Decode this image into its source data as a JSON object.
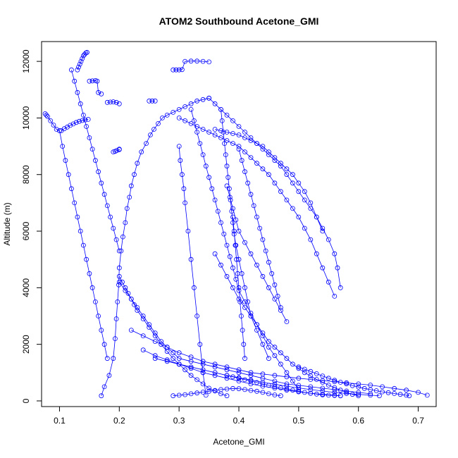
{
  "chart_data": {
    "type": "scatter",
    "title": "ATOM2 Southbound Acetone_GMI",
    "xlabel": "Acetone_GMI",
    "ylabel": "Altitude (m)",
    "xlim": [
      0.07,
      0.73
    ],
    "ylim": [
      -200,
      12700
    ],
    "x_ticks": [
      0.1,
      0.2,
      0.3,
      0.4,
      0.5,
      0.6,
      0.7
    ],
    "x_tick_labels": [
      "0.1",
      "0.2",
      "0.3",
      "0.4",
      "0.5",
      "0.6",
      "0.7"
    ],
    "y_ticks": [
      0,
      2000,
      4000,
      6000,
      8000,
      10000,
      12000
    ],
    "y_tick_labels": [
      "0",
      "2000",
      "4000",
      "6000",
      "8000",
      "10000",
      "12000"
    ],
    "grid": false,
    "legend": "none",
    "marker": "open-circle",
    "series_color": "#0000ff",
    "series": [
      {
        "x": [
          0.17,
          0.175,
          0.183,
          0.19,
          0.193,
          0.195,
          0.197,
          0.199,
          0.2,
          0.203,
          0.206,
          0.21,
          0.213,
          0.217,
          0.22,
          0.225,
          0.23,
          0.237,
          0.245,
          0.252,
          0.258,
          0.265,
          0.272,
          0.28,
          0.29,
          0.3,
          0.31,
          0.32,
          0.33,
          0.34,
          0.35
        ],
        "y": [
          180,
          500,
          900,
          1500,
          2200,
          2900,
          3500,
          4100,
          4700,
          5300,
          5800,
          6300,
          6800,
          7200,
          7600,
          8000,
          8400,
          8800,
          9100,
          9400,
          9600,
          9800,
          10000,
          10100,
          10200,
          10300,
          10400,
          10500,
          10600,
          10650,
          10700
        ]
      },
      {
        "x": [
          0.13,
          0.132,
          0.134,
          0.136,
          0.138,
          0.14,
          0.142,
          0.144,
          0.146
        ],
        "y": [
          11700,
          11800,
          11900,
          12000,
          12100,
          12200,
          12250,
          12300,
          12320
        ]
      },
      {
        "x": [
          0.12,
          0.125,
          0.13,
          0.135,
          0.14,
          0.145,
          0.15,
          0.155,
          0.16,
          0.165,
          0.17,
          0.175,
          0.18,
          0.185,
          0.19,
          0.195,
          0.2
        ],
        "y": [
          11700,
          11300,
          10900,
          10500,
          10100,
          9700,
          9300,
          8900,
          8500,
          8100,
          7700,
          7300,
          6900,
          6500,
          6100,
          5700,
          5300
        ]
      },
      {
        "x": [
          0.1,
          0.105,
          0.11,
          0.115,
          0.12,
          0.125,
          0.13,
          0.135,
          0.14,
          0.145,
          0.15,
          0.155,
          0.16,
          0.165,
          0.17,
          0.175,
          0.18
        ],
        "y": [
          9550,
          9000,
          8500,
          8000,
          7500,
          7000,
          6500,
          6000,
          5500,
          5000,
          4500,
          4000,
          3500,
          3000,
          2500,
          2000,
          1500
        ]
      },
      {
        "x": [
          0.103,
          0.108,
          0.113,
          0.118,
          0.123,
          0.128,
          0.133,
          0.138,
          0.143,
          0.148
        ],
        "y": [
          9550,
          9620,
          9680,
          9740,
          9790,
          9840,
          9880,
          9910,
          9930,
          9950
        ]
      },
      {
        "x": [
          0.076,
          0.078,
          0.08,
          0.085,
          0.09,
          0.095,
          0.1
        ],
        "y": [
          10150,
          10100,
          10050,
          9900,
          9750,
          9600,
          9550
        ]
      },
      {
        "x": [
          0.15,
          0.155,
          0.16,
          0.163,
          0.165,
          0.17
        ],
        "y": [
          11300,
          11310,
          11320,
          11300,
          10900,
          10850
        ]
      },
      {
        "x": [
          0.18,
          0.185,
          0.19,
          0.195,
          0.2
        ],
        "y": [
          10550,
          10560,
          10570,
          10550,
          10500
        ]
      },
      {
        "x": [
          0.19,
          0.193,
          0.196,
          0.2,
          0.2
        ],
        "y": [
          8800,
          8820,
          8850,
          8880,
          8900
        ]
      },
      {
        "x": [
          0.25,
          0.255,
          0.26
        ],
        "y": [
          10600,
          10600,
          10600
        ]
      },
      {
        "x": [
          0.29,
          0.295,
          0.3,
          0.305,
          0.31,
          0.32,
          0.33,
          0.34,
          0.35
        ],
        "y": [
          11700,
          11700,
          11700,
          11710,
          12000,
          12010,
          12010,
          12000,
          11980
        ]
      },
      {
        "x": [
          0.3,
          0.31,
          0.32,
          0.33,
          0.34,
          0.35,
          0.36,
          0.37,
          0.38,
          0.39,
          0.4,
          0.41,
          0.42,
          0.43,
          0.44,
          0.45,
          0.46,
          0.47,
          0.48,
          0.49,
          0.5,
          0.51,
          0.52,
          0.53,
          0.54,
          0.55,
          0.56
        ],
        "y": [
          10000,
          9900,
          9800,
          9700,
          9600,
          9500,
          9400,
          9300,
          9200,
          9100,
          9000,
          8800,
          8600,
          8400,
          8200,
          8000,
          7700,
          7400,
          7100,
          6800,
          6500,
          6100,
          5700,
          5200,
          4700,
          4200,
          3700
        ]
      },
      {
        "x": [
          0.35,
          0.36,
          0.37,
          0.38,
          0.39,
          0.4,
          0.41,
          0.42,
          0.43,
          0.44,
          0.45,
          0.46,
          0.47,
          0.48,
          0.49,
          0.5,
          0.51,
          0.52,
          0.53,
          0.54,
          0.55,
          0.56,
          0.565,
          0.57
        ],
        "y": [
          10700,
          10500,
          10300,
          10100,
          9900,
          9700,
          9500,
          9300,
          9100,
          8900,
          8700,
          8500,
          8300,
          8000,
          7700,
          7400,
          7100,
          6800,
          6500,
          6100,
          5700,
          5200,
          4700,
          4000
        ]
      },
      {
        "x": [
          0.36,
          0.37,
          0.38,
          0.39,
          0.4,
          0.41,
          0.42,
          0.43,
          0.44,
          0.45,
          0.46,
          0.47,
          0.48,
          0.49,
          0.5,
          0.51,
          0.52,
          0.53,
          0.54
        ],
        "y": [
          9600,
          9550,
          9500,
          9450,
          9400,
          9300,
          9200,
          9100,
          9000,
          8800,
          8600,
          8400,
          8200,
          8000,
          7700,
          7400,
          7000,
          6500,
          6000
        ]
      },
      {
        "x": [
          0.32,
          0.325,
          0.33,
          0.335,
          0.34,
          0.345,
          0.35,
          0.355,
          0.36,
          0.365,
          0.37,
          0.375,
          0.38,
          0.385,
          0.39,
          0.395,
          0.4,
          0.41,
          0.42,
          0.43,
          0.44,
          0.45,
          0.46,
          0.47,
          0.48,
          0.49,
          0.5
        ],
        "y": [
          10300,
          9900,
          9500,
          9100,
          8700,
          8300,
          7900,
          7500,
          7100,
          6700,
          6300,
          5900,
          5500,
          5100,
          4700,
          4300,
          3900,
          3500,
          3100,
          2700,
          2300,
          1900,
          1600,
          1300,
          1000,
          700,
          400
        ]
      },
      {
        "x": [
          0.3,
          0.302,
          0.305,
          0.308,
          0.31,
          0.315,
          0.32,
          0.325,
          0.33,
          0.335,
          0.34,
          0.345
        ],
        "y": [
          9000,
          8500,
          8000,
          7500,
          7000,
          6000,
          5000,
          4000,
          3000,
          2000,
          1000,
          200
        ]
      },
      {
        "x": [
          0.37,
          0.372,
          0.374,
          0.376,
          0.378,
          0.38,
          0.382,
          0.384,
          0.386,
          0.388,
          0.39,
          0.392,
          0.395,
          0.4,
          0.405,
          0.41,
          0.415,
          0.42,
          0.43,
          0.44,
          0.45
        ],
        "y": [
          10300,
          9900,
          9500,
          9100,
          8700,
          8300,
          7900,
          7500,
          7100,
          6700,
          6300,
          5900,
          5500,
          5000,
          4500,
          4000,
          3500,
          3000,
          2500,
          2000,
          1500
        ]
      },
      {
        "x": [
          0.38,
          0.385,
          0.39,
          0.395,
          0.4,
          0.41,
          0.42,
          0.43,
          0.44,
          0.45,
          0.46,
          0.47,
          0.48
        ],
        "y": [
          7600,
          7200,
          6800,
          6400,
          6000,
          5600,
          5200,
          4800,
          4400,
          4000,
          3600,
          3200,
          2800
        ]
      },
      {
        "x": [
          0.39,
          0.392,
          0.394,
          0.396,
          0.398,
          0.4,
          0.402,
          0.404,
          0.406,
          0.408,
          0.41
        ],
        "y": [
          6500,
          6000,
          5500,
          5000,
          4500,
          4000,
          3500,
          3000,
          2500,
          2000,
          1500
        ]
      },
      {
        "x": [
          0.2,
          0.21,
          0.22,
          0.23,
          0.24,
          0.25,
          0.26,
          0.27,
          0.28,
          0.29,
          0.3,
          0.32,
          0.34,
          0.36,
          0.38,
          0.4,
          0.42,
          0.44,
          0.46,
          0.48,
          0.5,
          0.52,
          0.54,
          0.56,
          0.58,
          0.6,
          0.62
        ],
        "y": [
          4200,
          3900,
          3600,
          3300,
          3000,
          2700,
          2400,
          2100,
          1900,
          1700,
          1500,
          1400,
          1300,
          1200,
          1100,
          1000,
          900,
          800,
          700,
          600,
          550,
          500,
          450,
          400,
          350,
          300,
          250
        ]
      },
      {
        "x": [
          0.22,
          0.24,
          0.26,
          0.28,
          0.3,
          0.32,
          0.34,
          0.36,
          0.38,
          0.4,
          0.42,
          0.44,
          0.46,
          0.48,
          0.5,
          0.52,
          0.54,
          0.56,
          0.58,
          0.6,
          0.62,
          0.64,
          0.66,
          0.68,
          0.7,
          0.715
        ],
        "y": [
          2500,
          2300,
          2100,
          1900,
          1700,
          1550,
          1400,
          1300,
          1200,
          1100,
          1000,
          950,
          900,
          850,
          800,
          760,
          720,
          680,
          640,
          600,
          560,
          500,
          440,
          380,
          300,
          200
        ]
      },
      {
        "x": [
          0.24,
          0.26,
          0.28,
          0.3,
          0.32,
          0.34,
          0.36,
          0.38,
          0.4,
          0.42,
          0.44,
          0.46,
          0.48,
          0.5,
          0.52,
          0.54,
          0.56,
          0.57
        ],
        "y": [
          1800,
          1600,
          1450,
          1300,
          1150,
          1000,
          900,
          800,
          700,
          600,
          520,
          450,
          380,
          320,
          270,
          230,
          200,
          180
        ]
      },
      {
        "x": [
          0.26,
          0.28,
          0.3,
          0.32,
          0.34,
          0.36,
          0.38,
          0.4,
          0.42,
          0.44,
          0.46,
          0.48,
          0.5,
          0.52,
          0.54,
          0.56,
          0.58,
          0.6,
          0.62,
          0.635
        ],
        "y": [
          1500,
          1400,
          1300,
          1200,
          1100,
          1000,
          900,
          820,
          740,
          660,
          590,
          520,
          460,
          400,
          350,
          300,
          260,
          230,
          200,
          180
        ]
      },
      {
        "x": [
          0.29,
          0.3,
          0.31,
          0.32,
          0.33,
          0.34,
          0.35,
          0.36,
          0.37,
          0.38,
          0.39,
          0.4,
          0.41,
          0.42,
          0.43,
          0.44,
          0.45,
          0.46,
          0.47
        ],
        "y": [
          180,
          200,
          220,
          250,
          280,
          310,
          340,
          370,
          400,
          420,
          440,
          430,
          400,
          370,
          340,
          300,
          250,
          210,
          180
        ]
      },
      {
        "x": [
          0.38,
          0.39,
          0.4,
          0.41,
          0.42,
          0.43,
          0.44,
          0.45,
          0.46,
          0.47,
          0.48,
          0.49,
          0.5,
          0.51,
          0.52,
          0.53,
          0.54,
          0.55,
          0.56,
          0.57
        ],
        "y": [
          900,
          850,
          800,
          750,
          700,
          650,
          600,
          550,
          500,
          460,
          420,
          380,
          340,
          300,
          270,
          240,
          210,
          200,
          190,
          180
        ]
      },
      {
        "x": [
          0.5,
          0.51,
          0.52,
          0.53,
          0.54,
          0.55,
          0.56,
          0.57,
          0.58,
          0.59,
          0.6,
          0.61,
          0.62,
          0.63,
          0.64,
          0.65,
          0.66,
          0.67,
          0.68,
          0.685
        ],
        "y": [
          1200,
          1120,
          1040,
          960,
          880,
          800,
          730,
          660,
          600,
          540,
          490,
          440,
          400,
          360,
          320,
          290,
          260,
          230,
          200,
          180
        ]
      },
      {
        "x": [
          0.2,
          0.205,
          0.21,
          0.215,
          0.22,
          0.225,
          0.23,
          0.24,
          0.25,
          0.26,
          0.27,
          0.28,
          0.29,
          0.3,
          0.31,
          0.32,
          0.33,
          0.34,
          0.35,
          0.36,
          0.37,
          0.38
        ],
        "y": [
          4400,
          4200,
          4000,
          3800,
          3600,
          3400,
          3200,
          2900,
          2600,
          2300,
          2000,
          1750,
          1500,
          1300,
          1100,
          900,
          750,
          600,
          450,
          350,
          250,
          180
        ]
      },
      {
        "x": [
          0.4,
          0.405,
          0.41,
          0.415,
          0.42,
          0.425,
          0.43,
          0.435,
          0.44,
          0.445,
          0.45,
          0.455,
          0.46,
          0.465,
          0.47
        ],
        "y": [
          8900,
          8500,
          8100,
          7700,
          7300,
          6900,
          6500,
          6100,
          5700,
          5300,
          4900,
          4500,
          4100,
          3700,
          3300
        ]
      },
      {
        "x": [
          0.36,
          0.37,
          0.38,
          0.39,
          0.4,
          0.41,
          0.42,
          0.43,
          0.44,
          0.45,
          0.46,
          0.47,
          0.48,
          0.49,
          0.5,
          0.51,
          0.52,
          0.53,
          0.54,
          0.55,
          0.56,
          0.57,
          0.58,
          0.59,
          0.6
        ],
        "y": [
          5200,
          4800,
          4400,
          4000,
          3600,
          3300,
          3000,
          2700,
          2400,
          2100,
          1900,
          1700,
          1500,
          1300,
          1150,
          1000,
          880,
          760,
          660,
          560,
          470,
          380,
          300,
          230,
          180
        ]
      }
    ]
  }
}
